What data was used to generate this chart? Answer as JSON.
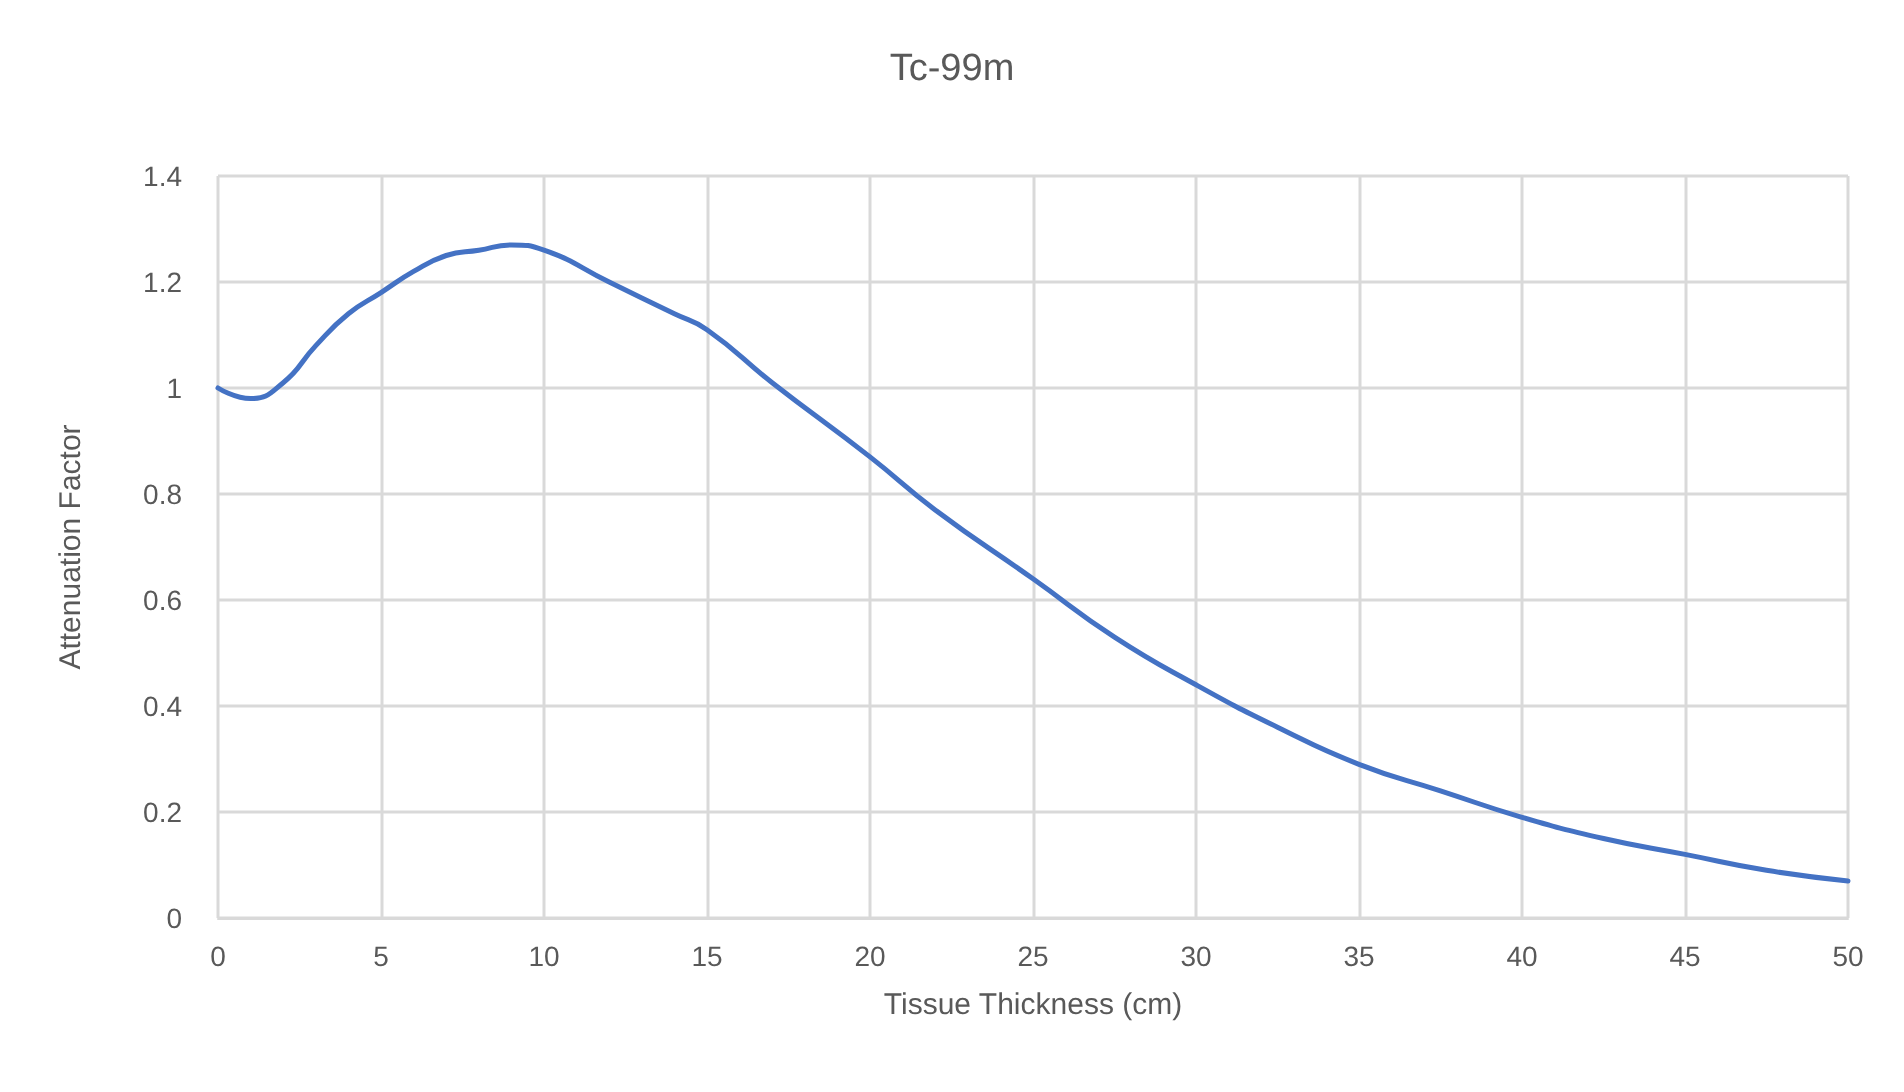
{
  "chart_data": {
    "type": "line",
    "title": "Tc-99m",
    "xlabel": "Tissue Thickness (cm)",
    "ylabel": "Attenuation Factor",
    "x": [
      0,
      1,
      2,
      3,
      4,
      5,
      6,
      7,
      8,
      9,
      10,
      12,
      14,
      15,
      17,
      20,
      22,
      25,
      27.5,
      30,
      32.5,
      35,
      37.5,
      40,
      42.5,
      45,
      47.5,
      50
    ],
    "series": [
      {
        "color": "#4472c4",
        "values": [
          1.0,
          0.98,
          1.01,
          1.08,
          1.14,
          1.18,
          1.22,
          1.25,
          1.26,
          1.27,
          1.26,
          1.2,
          1.14,
          1.11,
          1.01,
          0.87,
          0.77,
          0.64,
          0.53,
          0.44,
          0.36,
          0.29,
          0.24,
          0.19,
          0.15,
          0.12,
          0.09,
          0.07
        ]
      }
    ],
    "xlim": [
      0,
      50
    ],
    "xticks": [
      0,
      5,
      10,
      15,
      20,
      25,
      30,
      35,
      40,
      45,
      50
    ],
    "ylim": [
      0,
      1.4
    ],
    "yticks": [
      0,
      0.2,
      0.4,
      0.6,
      0.8,
      1,
      1.2,
      1.4
    ],
    "grid": true,
    "marker": "none",
    "line_style": "solid"
  }
}
